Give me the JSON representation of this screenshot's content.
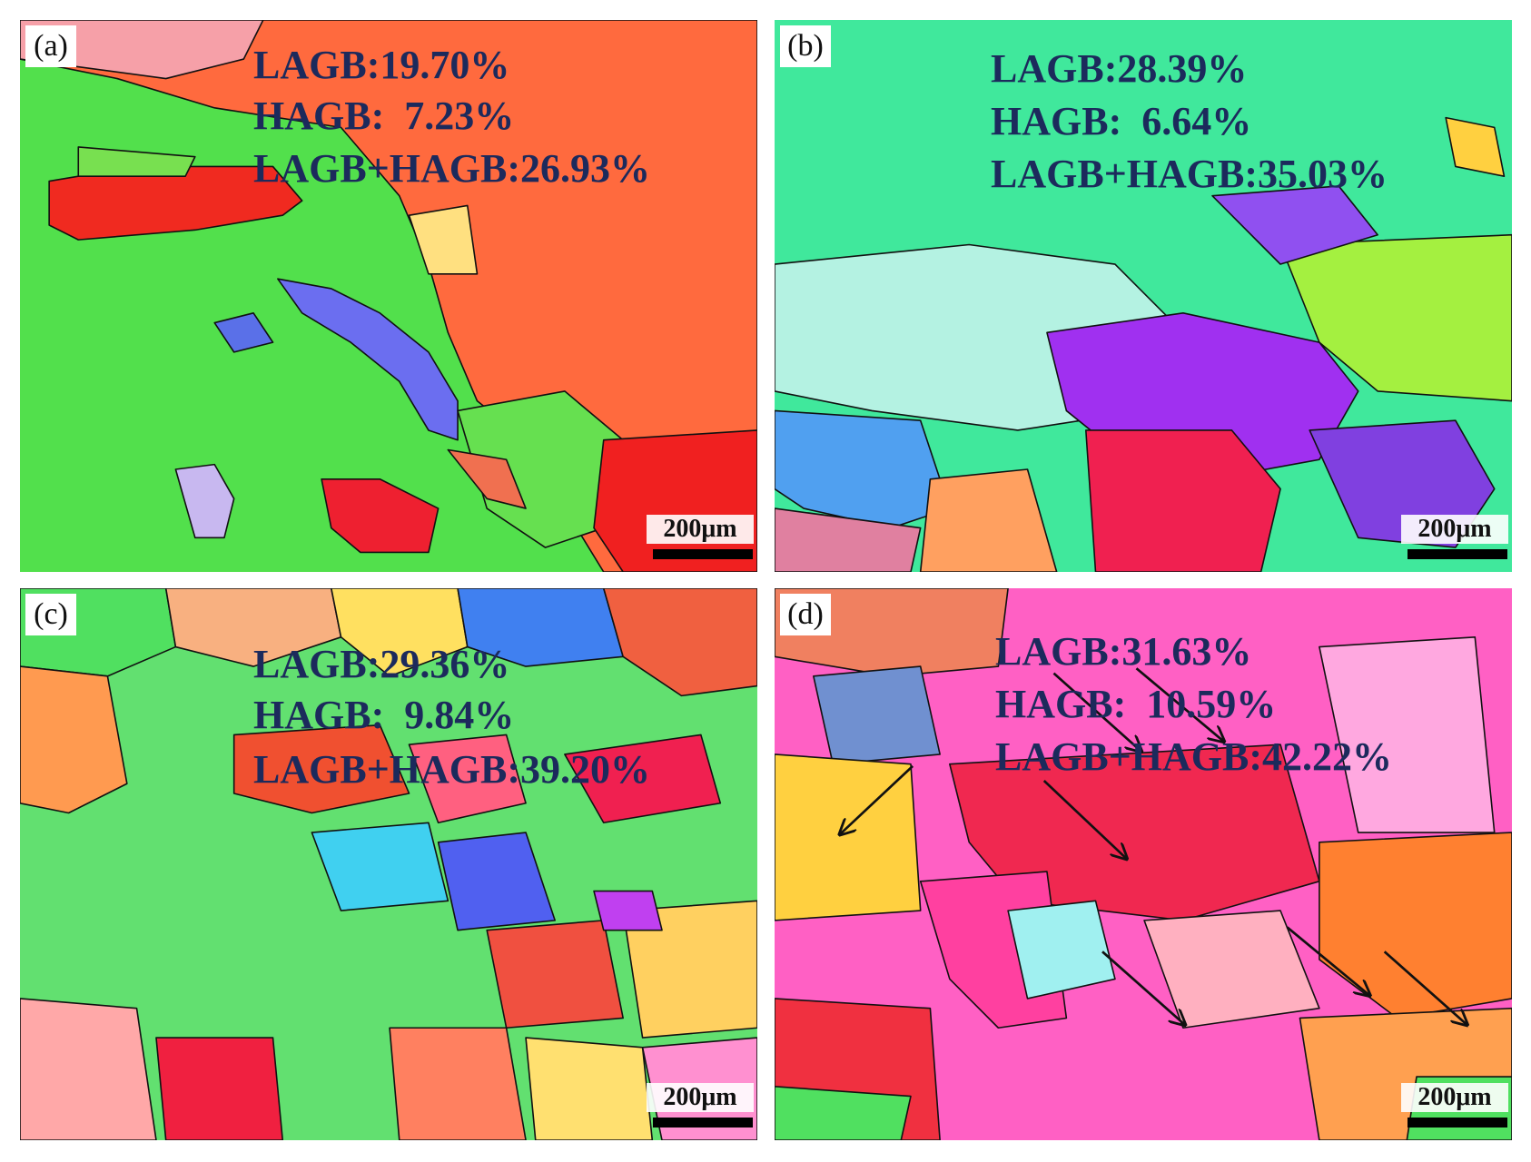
{
  "panels": [
    {
      "label": "(a)",
      "lines": [
        "LAGB:19.70%",
        "HAGB:  7.23%",
        "LAGB+HAGB:26.93%"
      ],
      "scale_bar": "200μm"
    },
    {
      "label": "(b)",
      "lines": [
        "LAGB:28.39%",
        "HAGB:  6.64%",
        "LAGB+HAGB:35.03%"
      ],
      "scale_bar": "200μm"
    },
    {
      "label": "(c)",
      "lines": [
        "LAGB:29.36%",
        "HAGB:  9.84%",
        "LAGB+HAGB:39.20%"
      ],
      "scale_bar": "200μm"
    },
    {
      "label": "(d)",
      "lines": [
        "LAGB:31.63%",
        "HAGB:  10.59%",
        "LAGB+HAGB:42.22%"
      ],
      "scale_bar": "200μm"
    }
  ]
}
